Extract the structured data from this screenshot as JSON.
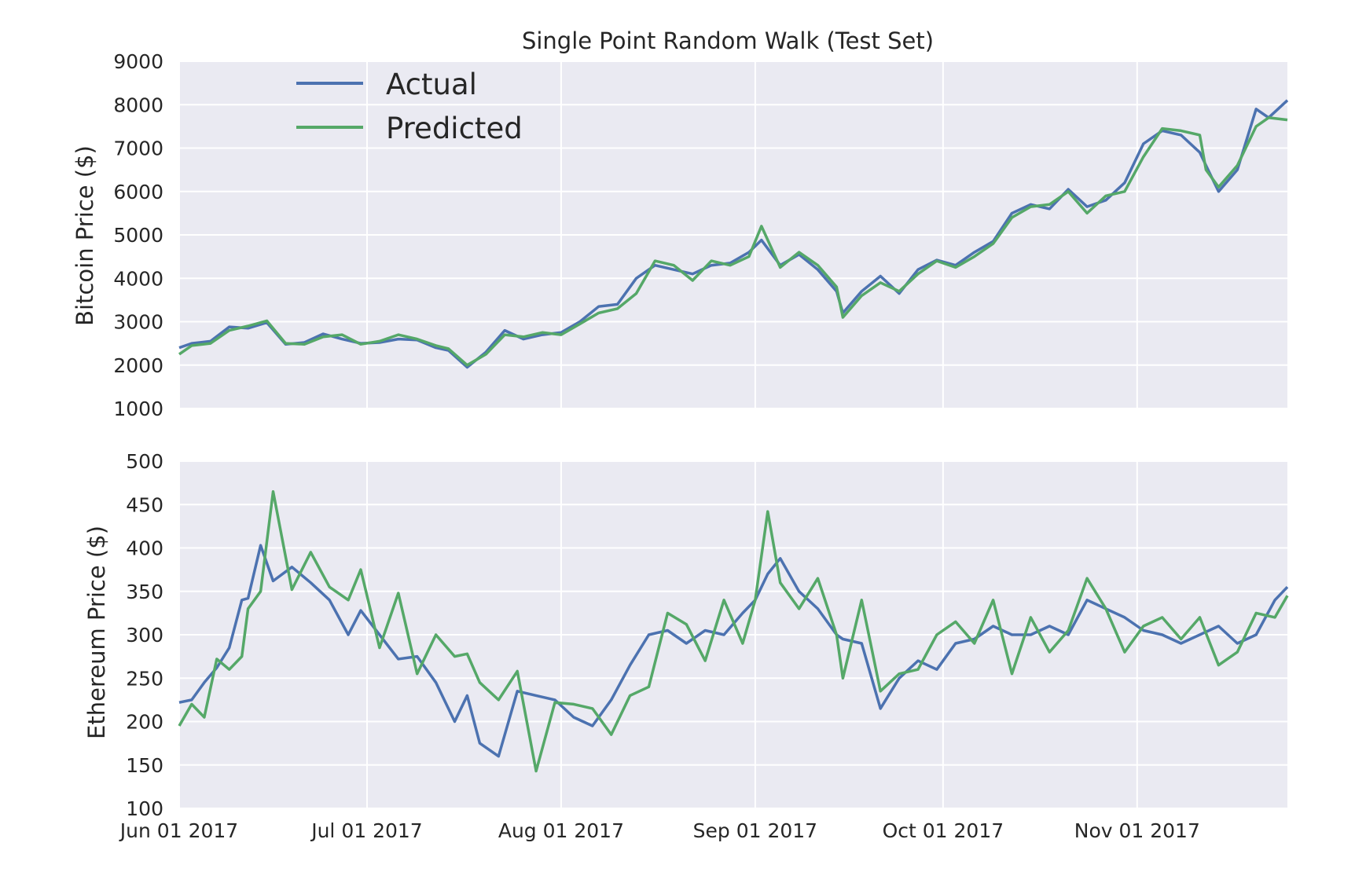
{
  "chart_data": [
    {
      "type": "line",
      "title": "Single Point Random Walk (Test Set)",
      "xlabel": "",
      "ylabel": "Bitcoin Price ($)",
      "xlim": [
        "2017-06-01",
        "2017-11-25"
      ],
      "ylim": [
        1000,
        9000
      ],
      "yticks": [
        1000,
        2000,
        3000,
        4000,
        5000,
        6000,
        7000,
        8000,
        9000
      ],
      "xticks": [
        "2017-06-01",
        "2017-07-01",
        "2017-08-01",
        "2017-09-01",
        "2017-10-01",
        "2017-11-01"
      ],
      "xtick_labels": [
        "Jun 01 2017",
        "Jul 01 2017",
        "Aug 01 2017",
        "Sep 01 2017",
        "Oct 01 2017",
        "Nov 01 2017"
      ],
      "grid": true,
      "legend": "top-left",
      "colors": {
        "actual": "#4c72b0",
        "predicted": "#55a868",
        "background": "#eaeaf2",
        "grid": "#ffffff"
      },
      "series": [
        {
          "name": "Actual",
          "x": [
            "2017-06-01",
            "2017-06-03",
            "2017-06-06",
            "2017-06-09",
            "2017-06-12",
            "2017-06-15",
            "2017-06-18",
            "2017-06-21",
            "2017-06-24",
            "2017-06-27",
            "2017-06-30",
            "2017-07-03",
            "2017-07-06",
            "2017-07-09",
            "2017-07-12",
            "2017-07-14",
            "2017-07-17",
            "2017-07-20",
            "2017-07-23",
            "2017-07-26",
            "2017-07-29",
            "2017-08-01",
            "2017-08-04",
            "2017-08-07",
            "2017-08-10",
            "2017-08-13",
            "2017-08-16",
            "2017-08-19",
            "2017-08-22",
            "2017-08-25",
            "2017-08-28",
            "2017-08-31",
            "2017-09-02",
            "2017-09-05",
            "2017-09-08",
            "2017-09-11",
            "2017-09-14",
            "2017-09-15",
            "2017-09-18",
            "2017-09-21",
            "2017-09-24",
            "2017-09-27",
            "2017-09-30",
            "2017-10-03",
            "2017-10-06",
            "2017-10-09",
            "2017-10-12",
            "2017-10-15",
            "2017-10-18",
            "2017-10-21",
            "2017-10-24",
            "2017-10-27",
            "2017-10-30",
            "2017-11-02",
            "2017-11-05",
            "2017-11-08",
            "2017-11-11",
            "2017-11-12",
            "2017-11-14",
            "2017-11-17",
            "2017-11-20",
            "2017-11-22",
            "2017-11-25"
          ],
          "y": [
            2400,
            2500,
            2550,
            2880,
            2850,
            2980,
            2480,
            2520,
            2720,
            2600,
            2500,
            2520,
            2600,
            2580,
            2400,
            2340,
            1950,
            2300,
            2800,
            2600,
            2700,
            2750,
            3000,
            3350,
            3400,
            4000,
            4300,
            4200,
            4100,
            4300,
            4350,
            4600,
            4880,
            4300,
            4550,
            4200,
            3700,
            3200,
            3700,
            4050,
            3650,
            4200,
            4420,
            4300,
            4600,
            4850,
            5500,
            5700,
            5600,
            6050,
            5650,
            5800,
            6200,
            7100,
            7400,
            7300,
            6900,
            6600,
            6000,
            6500,
            7900,
            7700,
            8100
          ]
        },
        {
          "name": "Predicted",
          "x": [
            "2017-06-01",
            "2017-06-03",
            "2017-06-06",
            "2017-06-09",
            "2017-06-12",
            "2017-06-15",
            "2017-06-18",
            "2017-06-21",
            "2017-06-24",
            "2017-06-27",
            "2017-06-30",
            "2017-07-03",
            "2017-07-06",
            "2017-07-09",
            "2017-07-12",
            "2017-07-14",
            "2017-07-17",
            "2017-07-20",
            "2017-07-23",
            "2017-07-26",
            "2017-07-29",
            "2017-08-01",
            "2017-08-04",
            "2017-08-07",
            "2017-08-10",
            "2017-08-13",
            "2017-08-16",
            "2017-08-19",
            "2017-08-22",
            "2017-08-25",
            "2017-08-28",
            "2017-08-31",
            "2017-09-02",
            "2017-09-05",
            "2017-09-08",
            "2017-09-11",
            "2017-09-14",
            "2017-09-15",
            "2017-09-18",
            "2017-09-21",
            "2017-09-24",
            "2017-09-27",
            "2017-09-30",
            "2017-10-03",
            "2017-10-06",
            "2017-10-09",
            "2017-10-12",
            "2017-10-15",
            "2017-10-18",
            "2017-10-21",
            "2017-10-24",
            "2017-10-27",
            "2017-10-30",
            "2017-11-02",
            "2017-11-05",
            "2017-11-08",
            "2017-11-11",
            "2017-11-12",
            "2017-11-14",
            "2017-11-17",
            "2017-11-20",
            "2017-11-22",
            "2017-11-25"
          ],
          "y": [
            2250,
            2450,
            2500,
            2800,
            2900,
            3020,
            2500,
            2480,
            2650,
            2700,
            2480,
            2550,
            2700,
            2600,
            2450,
            2380,
            2000,
            2250,
            2700,
            2650,
            2750,
            2700,
            2950,
            3200,
            3300,
            3650,
            4400,
            4300,
            3950,
            4400,
            4300,
            4500,
            5200,
            4250,
            4600,
            4300,
            3800,
            3100,
            3600,
            3900,
            3700,
            4100,
            4400,
            4250,
            4500,
            4800,
            5400,
            5650,
            5700,
            6000,
            5500,
            5900,
            6000,
            6800,
            7450,
            7400,
            7300,
            6500,
            6100,
            6600,
            7500,
            7700,
            7650
          ]
        }
      ]
    },
    {
      "type": "line",
      "title": "",
      "xlabel": "",
      "ylabel": "Ethereum Price ($)",
      "xlim": [
        "2017-06-01",
        "2017-11-25"
      ],
      "ylim": [
        100,
        500
      ],
      "yticks": [
        100,
        150,
        200,
        250,
        300,
        350,
        400,
        450,
        500
      ],
      "xticks": [
        "2017-06-01",
        "2017-07-01",
        "2017-08-01",
        "2017-09-01",
        "2017-10-01",
        "2017-11-01"
      ],
      "xtick_labels": [
        "Jun 01 2017",
        "Jul 01 2017",
        "Aug 01 2017",
        "Sep 01 2017",
        "Oct 01 2017",
        "Nov 01 2017"
      ],
      "grid": true,
      "series": [
        {
          "name": "Actual",
          "x": [
            "2017-06-01",
            "2017-06-03",
            "2017-06-05",
            "2017-06-07",
            "2017-06-09",
            "2017-06-11",
            "2017-06-12",
            "2017-06-14",
            "2017-06-16",
            "2017-06-19",
            "2017-06-22",
            "2017-06-25",
            "2017-06-28",
            "2017-06-30",
            "2017-07-03",
            "2017-07-06",
            "2017-07-09",
            "2017-07-12",
            "2017-07-15",
            "2017-07-17",
            "2017-07-19",
            "2017-07-22",
            "2017-07-25",
            "2017-07-28",
            "2017-07-31",
            "2017-08-03",
            "2017-08-06",
            "2017-08-09",
            "2017-08-12",
            "2017-08-15",
            "2017-08-18",
            "2017-08-21",
            "2017-08-24",
            "2017-08-27",
            "2017-08-30",
            "2017-09-01",
            "2017-09-03",
            "2017-09-05",
            "2017-09-08",
            "2017-09-11",
            "2017-09-14",
            "2017-09-15",
            "2017-09-18",
            "2017-09-21",
            "2017-09-24",
            "2017-09-27",
            "2017-09-30",
            "2017-10-03",
            "2017-10-06",
            "2017-10-09",
            "2017-10-12",
            "2017-10-15",
            "2017-10-18",
            "2017-10-21",
            "2017-10-24",
            "2017-10-27",
            "2017-10-30",
            "2017-11-02",
            "2017-11-05",
            "2017-11-08",
            "2017-11-11",
            "2017-11-14",
            "2017-11-17",
            "2017-11-20",
            "2017-11-23",
            "2017-11-25"
          ],
          "y": [
            222,
            225,
            245,
            262,
            285,
            340,
            342,
            403,
            362,
            378,
            360,
            340,
            300,
            328,
            300,
            272,
            275,
            245,
            200,
            230,
            175,
            160,
            235,
            230,
            225,
            205,
            195,
            225,
            265,
            300,
            305,
            290,
            305,
            300,
            325,
            340,
            370,
            388,
            350,
            330,
            300,
            295,
            290,
            215,
            250,
            270,
            260,
            290,
            295,
            310,
            300,
            300,
            310,
            300,
            340,
            330,
            320,
            305,
            300,
            290,
            300,
            310,
            290,
            300,
            340,
            355
          ]
        },
        {
          "name": "Predicted",
          "x": [
            "2017-06-01",
            "2017-06-03",
            "2017-06-05",
            "2017-06-07",
            "2017-06-09",
            "2017-06-11",
            "2017-06-12",
            "2017-06-14",
            "2017-06-16",
            "2017-06-19",
            "2017-06-22",
            "2017-06-25",
            "2017-06-28",
            "2017-06-30",
            "2017-07-03",
            "2017-07-06",
            "2017-07-09",
            "2017-07-12",
            "2017-07-15",
            "2017-07-17",
            "2017-07-19",
            "2017-07-22",
            "2017-07-25",
            "2017-07-28",
            "2017-07-31",
            "2017-08-03",
            "2017-08-06",
            "2017-08-09",
            "2017-08-12",
            "2017-08-15",
            "2017-08-18",
            "2017-08-21",
            "2017-08-24",
            "2017-08-27",
            "2017-08-30",
            "2017-09-01",
            "2017-09-03",
            "2017-09-05",
            "2017-09-08",
            "2017-09-11",
            "2017-09-14",
            "2017-09-15",
            "2017-09-18",
            "2017-09-21",
            "2017-09-24",
            "2017-09-27",
            "2017-09-30",
            "2017-10-03",
            "2017-10-06",
            "2017-10-09",
            "2017-10-12",
            "2017-10-15",
            "2017-10-18",
            "2017-10-21",
            "2017-10-24",
            "2017-10-27",
            "2017-10-30",
            "2017-11-02",
            "2017-11-05",
            "2017-11-08",
            "2017-11-11",
            "2017-11-14",
            "2017-11-17",
            "2017-11-20",
            "2017-11-23",
            "2017-11-25"
          ],
          "y": [
            195,
            220,
            205,
            272,
            260,
            275,
            330,
            350,
            465,
            352,
            395,
            355,
            340,
            375,
            285,
            348,
            255,
            300,
            275,
            278,
            245,
            225,
            258,
            143,
            222,
            220,
            215,
            185,
            230,
            240,
            325,
            312,
            270,
            340,
            290,
            340,
            442,
            360,
            330,
            365,
            300,
            250,
            340,
            235,
            255,
            260,
            300,
            315,
            290,
            340,
            255,
            320,
            280,
            305,
            365,
            330,
            280,
            310,
            320,
            295,
            320,
            265,
            280,
            325,
            320,
            345
          ]
        }
      ]
    }
  ]
}
